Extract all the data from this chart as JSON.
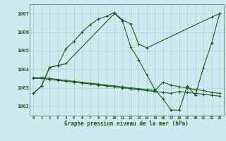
{
  "title": "Graphe pression niveau de la mer (hPa)",
  "background_color": "#cdeaf0",
  "grid_color": "#b0d8dc",
  "line_color": "#1a5c1a",
  "xlim": [
    -0.5,
    23.5
  ],
  "ylim": [
    1001.5,
    1007.5
  ],
  "yticks": [
    1002,
    1003,
    1004,
    1005,
    1006,
    1007
  ],
  "xticks": [
    0,
    1,
    2,
    3,
    4,
    5,
    6,
    7,
    8,
    9,
    10,
    11,
    12,
    13,
    14,
    15,
    16,
    17,
    18,
    19,
    20,
    21,
    22,
    23
  ],
  "series": [
    {
      "x": [
        0,
        1,
        2,
        3,
        4,
        5,
        6,
        7,
        8,
        9,
        10,
        11,
        12,
        13,
        14,
        22,
        23
      ],
      "y": [
        1002.7,
        1003.1,
        1004.1,
        1004.2,
        1005.1,
        1005.5,
        1006.0,
        1006.4,
        1006.7,
        1006.85,
        1007.05,
        1006.65,
        1006.45,
        1005.35,
        1005.15,
        1006.8,
        1007.0
      ]
    },
    {
      "x": [
        0,
        1,
        2,
        3,
        4,
        10,
        11,
        12,
        13,
        14,
        15,
        16,
        17,
        18,
        19,
        20,
        21,
        22,
        23
      ],
      "y": [
        1002.7,
        1003.1,
        1004.1,
        1004.2,
        1004.3,
        1007.0,
        1006.6,
        1005.2,
        1004.5,
        1003.7,
        1002.9,
        1002.4,
        1001.8,
        1001.8,
        1003.1,
        1002.6,
        1004.1,
        1005.4,
        1007.0
      ]
    },
    {
      "x": [
        0,
        1,
        2,
        3,
        4,
        5,
        6,
        7,
        8,
        9,
        10,
        11,
        12,
        13,
        14,
        15,
        16,
        17,
        18,
        19,
        20,
        21,
        22,
        23
      ],
      "y": [
        1003.55,
        1003.55,
        1003.5,
        1003.45,
        1003.4,
        1003.35,
        1003.3,
        1003.25,
        1003.2,
        1003.15,
        1003.1,
        1003.05,
        1003.0,
        1002.95,
        1002.9,
        1002.85,
        1003.3,
        1003.15,
        1003.05,
        1003.0,
        1002.9,
        1002.85,
        1002.75,
        1002.7
      ]
    },
    {
      "x": [
        0,
        1,
        2,
        3,
        4,
        5,
        6,
        7,
        8,
        9,
        10,
        11,
        12,
        13,
        14,
        15,
        16,
        17,
        18,
        19,
        20,
        21,
        22,
        23
      ],
      "y": [
        1003.5,
        1003.5,
        1003.45,
        1003.4,
        1003.35,
        1003.3,
        1003.25,
        1003.2,
        1003.15,
        1003.1,
        1003.05,
        1003.0,
        1002.95,
        1002.9,
        1002.85,
        1002.8,
        1002.75,
        1002.7,
        1002.8,
        1002.75,
        1002.7,
        1002.65,
        1002.6,
        1002.55
      ]
    }
  ]
}
